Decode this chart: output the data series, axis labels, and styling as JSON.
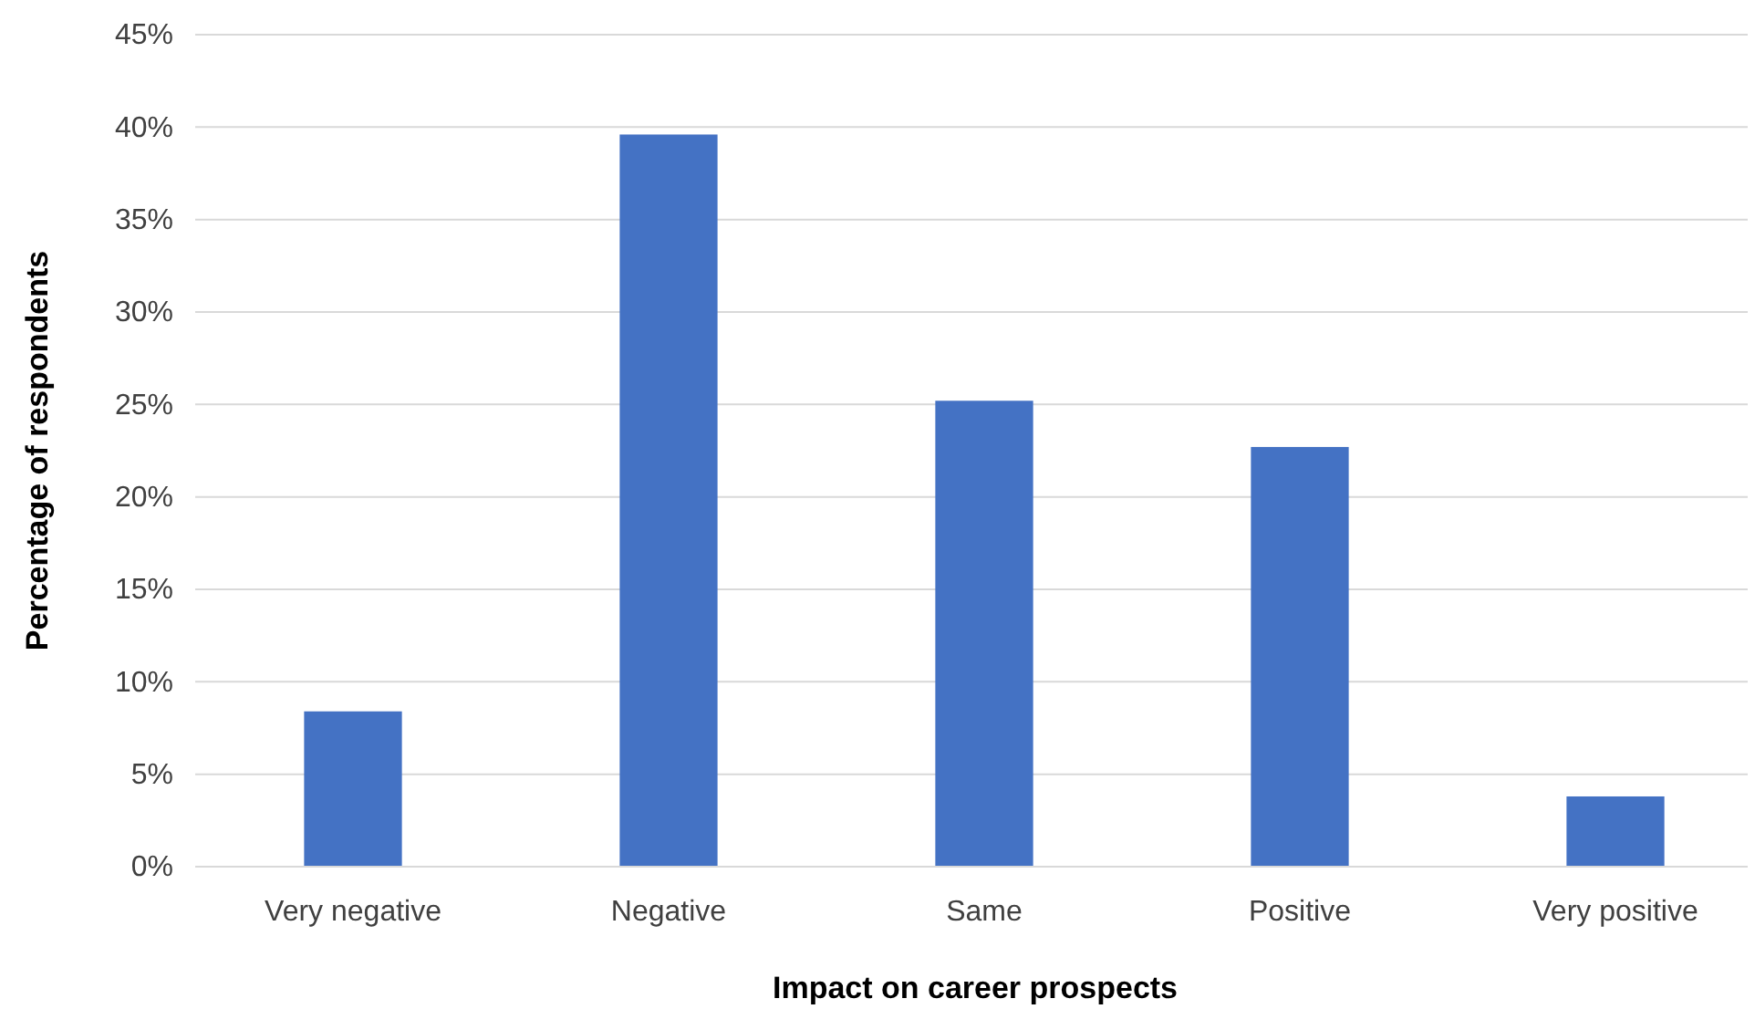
{
  "chart_data": {
    "type": "bar",
    "xlabel": "Impact on career prospects",
    "ylabel": "Percentage of respondents",
    "categories": [
      "Very negative",
      "Negative",
      "Same",
      "Positive",
      "Very positive"
    ],
    "values": [
      8.4,
      39.6,
      25.2,
      22.7,
      3.8
    ],
    "color": "#4472c4",
    "ylim": [
      0,
      45
    ],
    "yticks": [
      {
        "value": 0,
        "label": "0%"
      },
      {
        "value": 5,
        "label": "5%"
      },
      {
        "value": 10,
        "label": "10%"
      },
      {
        "value": 15,
        "label": "15%"
      },
      {
        "value": 20,
        "label": "20%"
      },
      {
        "value": 25,
        "label": "25%"
      },
      {
        "value": 30,
        "label": "30%"
      },
      {
        "value": 35,
        "label": "35%"
      },
      {
        "value": 40,
        "label": "40%"
      },
      {
        "value": 45,
        "label": "45%"
      }
    ],
    "grid": "y"
  }
}
